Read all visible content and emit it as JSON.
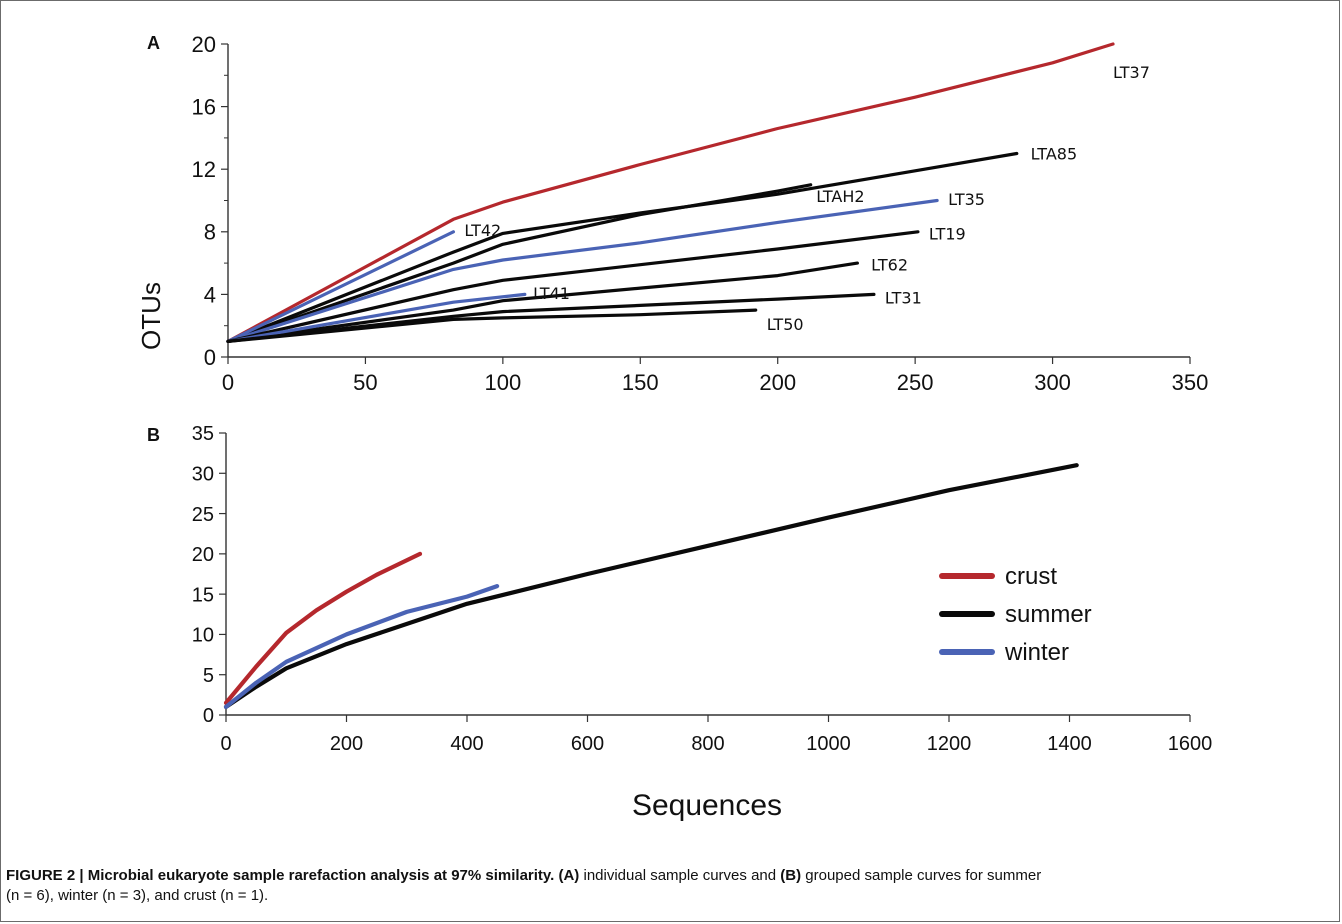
{
  "colors": {
    "crust": "#b5282d",
    "summer": "#0a0a0a",
    "winter": "#4a63b5",
    "axis": "#333333"
  },
  "chart_data": [
    {
      "panel": "A",
      "type": "line",
      "ylabel": "OTUs",
      "xlim": [
        0,
        350
      ],
      "ylim": [
        0,
        20
      ],
      "xticks": [
        "0",
        "50",
        "100",
        "150",
        "200",
        "250",
        "300",
        "350"
      ],
      "xtick_values": [
        0,
        50,
        100,
        150,
        200,
        250,
        300,
        350
      ],
      "yticks": [
        "0",
        "4",
        "8",
        "12",
        "16",
        "20"
      ],
      "ytick_values": [
        0,
        4,
        8,
        12,
        16,
        20
      ],
      "series": [
        {
          "name": "LT37",
          "group": "crust",
          "points": [
            [
              0,
              1
            ],
            [
              82,
              8.8
            ],
            [
              100,
              9.9
            ],
            [
              150,
              12.3
            ],
            [
              200,
              14.6
            ],
            [
              250,
              16.6
            ],
            [
              300,
              18.8
            ],
            [
              322,
              20
            ]
          ]
        },
        {
          "name": "LTA85",
          "group": "summer",
          "points": [
            [
              0,
              1
            ],
            [
              82,
              6.7
            ],
            [
              100,
              7.9
            ],
            [
              150,
              9.2
            ],
            [
              200,
              10.4
            ],
            [
              250,
              11.9
            ],
            [
              287,
              13
            ]
          ]
        },
        {
          "name": "LTAH2",
          "group": "summer",
          "points": [
            [
              0,
              1
            ],
            [
              82,
              6
            ],
            [
              100,
              7.2
            ],
            [
              150,
              9.1
            ],
            [
              200,
              10.6
            ],
            [
              212,
              11
            ]
          ]
        },
        {
          "name": "LT35",
          "group": "winter",
          "points": [
            [
              0,
              1
            ],
            [
              82,
              5.6
            ],
            [
              100,
              6.2
            ],
            [
              150,
              7.3
            ],
            [
              200,
              8.6
            ],
            [
              258,
              10
            ]
          ]
        },
        {
          "name": "LT42",
          "group": "winter",
          "points": [
            [
              0,
              1
            ],
            [
              82,
              8
            ]
          ]
        },
        {
          "name": "LT19",
          "group": "summer",
          "points": [
            [
              0,
              1
            ],
            [
              82,
              4.3
            ],
            [
              100,
              4.9
            ],
            [
              150,
              5.9
            ],
            [
              200,
              6.9
            ],
            [
              251,
              8
            ]
          ]
        },
        {
          "name": "LT62",
          "group": "summer",
          "points": [
            [
              0,
              1
            ],
            [
              82,
              3
            ],
            [
              100,
              3.6
            ],
            [
              150,
              4.4
            ],
            [
              200,
              5.2
            ],
            [
              229,
              6
            ]
          ]
        },
        {
          "name": "LT41",
          "group": "winter",
          "points": [
            [
              0,
              1
            ],
            [
              82,
              3.5
            ],
            [
              108,
              4
            ]
          ]
        },
        {
          "name": "LT31",
          "group": "summer",
          "points": [
            [
              0,
              1
            ],
            [
              82,
              2.6
            ],
            [
              100,
              2.9
            ],
            [
              150,
              3.3
            ],
            [
              200,
              3.7
            ],
            [
              235,
              4
            ]
          ]
        },
        {
          "name": "LT50",
          "group": "summer",
          "points": [
            [
              0,
              1
            ],
            [
              82,
              2.4
            ],
            [
              100,
              2.5
            ],
            [
              150,
              2.7
            ],
            [
              192,
              3
            ]
          ]
        }
      ],
      "point_labels": [
        {
          "text": "LT37",
          "x": 322,
          "y": 18.2
        },
        {
          "text": "LTA85",
          "x": 292,
          "y": 13
        },
        {
          "text": "LTAH2",
          "x": 214,
          "y": 10.3
        },
        {
          "text": "LT35",
          "x": 262,
          "y": 10.1
        },
        {
          "text": "LT19",
          "x": 255,
          "y": 7.9
        },
        {
          "text": "LT62",
          "x": 234,
          "y": 5.9
        },
        {
          "text": "LT31",
          "x": 239,
          "y": 3.8
        },
        {
          "text": "LT50",
          "x": 196,
          "y": 2.1
        },
        {
          "text": "LT42",
          "x": 86,
          "y": 8.1
        },
        {
          "text": "LT41",
          "x": 111,
          "y": 4.1
        }
      ]
    },
    {
      "panel": "B",
      "type": "line",
      "xlabel": "Sequences",
      "xlim": [
        0,
        1600
      ],
      "ylim": [
        0,
        35
      ],
      "xticks": [
        "0",
        "200",
        "400",
        "600",
        "800",
        "1000",
        "1200",
        "1400",
        "1600"
      ],
      "xtick_values": [
        0,
        200,
        400,
        600,
        800,
        1000,
        1200,
        1400,
        1600
      ],
      "yticks": [
        "0",
        "5",
        "10",
        "15",
        "20",
        "25",
        "30",
        "35"
      ],
      "ytick_values": [
        0,
        5,
        10,
        15,
        20,
        25,
        30,
        35
      ],
      "legend_position": "center-right",
      "series": [
        {
          "name": "crust",
          "group": "crust",
          "points": [
            [
              0,
              1.5
            ],
            [
              50,
              6
            ],
            [
              100,
              10.2
            ],
            [
              150,
              13
            ],
            [
              200,
              15.3
            ],
            [
              250,
              17.4
            ],
            [
              322,
              20
            ]
          ]
        },
        {
          "name": "summer",
          "group": "summer",
          "points": [
            [
              0,
              1
            ],
            [
              50,
              3.5
            ],
            [
              100,
              5.8
            ],
            [
              200,
              8.8
            ],
            [
              400,
              13.8
            ],
            [
              600,
              17.5
            ],
            [
              800,
              21
            ],
            [
              1000,
              24.5
            ],
            [
              1200,
              27.9
            ],
            [
              1412,
              31
            ]
          ]
        },
        {
          "name": "winter",
          "group": "winter",
          "points": [
            [
              0,
              1
            ],
            [
              50,
              4
            ],
            [
              100,
              6.6
            ],
            [
              200,
              10
            ],
            [
              300,
              12.8
            ],
            [
              400,
              14.7
            ],
            [
              450,
              16
            ]
          ]
        }
      ]
    }
  ],
  "caption": {
    "label": "FIGURE 2 | Microbial eukaryote sample rarefaction analysis at 97% similarity.",
    "a_marker": "(A)",
    "a_text": "individual sample curves and",
    "b_marker": "(B)",
    "b_text": "grouped sample curves for summer",
    "line2": "(n = 6), winter (n = 3), and crust (n = 1)."
  }
}
